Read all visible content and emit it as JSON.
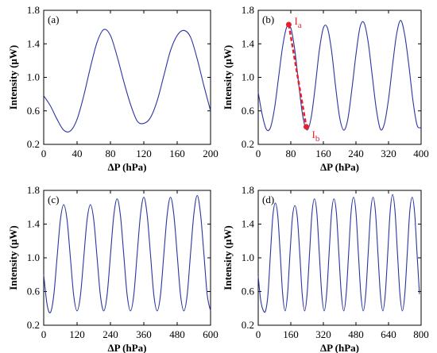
{
  "chart_data": [
    {
      "type": "line",
      "label": "(a)",
      "xlabel": "ΔP (hPa)",
      "ylabel": "Intensity (μW)",
      "xlim": [
        0,
        200
      ],
      "ylim": [
        0.2,
        1.8
      ],
      "xticks": [
        0,
        40,
        80,
        120,
        160,
        200
      ],
      "yticks": [
        0.2,
        0.6,
        {
          "value": 1,
          "label": "1.0"
        },
        1.4,
        1.8
      ],
      "x": [
        0,
        8,
        16,
        24,
        32,
        40,
        48,
        56,
        64,
        72,
        80,
        88,
        96,
        104,
        112,
        120,
        128,
        136,
        144,
        152,
        160,
        168,
        176,
        184,
        192,
        200
      ],
      "color": "#2b35a0",
      "values": [
        0.78,
        0.66,
        0.5,
        0.37,
        0.36,
        0.5,
        0.78,
        1.12,
        1.42,
        1.57,
        1.5,
        1.25,
        0.95,
        0.68,
        0.48,
        0.45,
        0.52,
        0.72,
        1.02,
        1.32,
        1.5,
        1.56,
        1.48,
        1.22,
        0.9,
        0.6
      ]
    },
    {
      "type": "line",
      "label": "(b)",
      "xlabel": "ΔP (hPa)",
      "ylabel": "Intensity (μW)",
      "xlim": [
        0,
        400
      ],
      "ylim": [
        0.2,
        1.8
      ],
      "xticks": [
        0,
        80,
        160,
        240,
        320,
        400
      ],
      "yticks": [
        0.2,
        0.6,
        {
          "value": 1,
          "label": "1.0"
        },
        1.4,
        1.8
      ],
      "x": [
        0,
        10,
        20,
        30,
        40,
        50,
        60,
        70,
        80,
        90,
        100,
        110,
        120,
        130,
        140,
        150,
        160,
        170,
        180,
        190,
        200,
        210,
        220,
        230,
        240,
        250,
        260,
        270,
        280,
        290,
        300,
        310,
        320,
        330,
        340,
        350,
        360,
        370,
        380,
        390,
        400
      ],
      "color": "#2b35a0",
      "values": [
        0.82,
        0.55,
        0.38,
        0.4,
        0.63,
        1.0,
        1.37,
        1.6,
        1.59,
        1.32,
        0.89,
        0.52,
        0.37,
        0.52,
        0.89,
        1.32,
        1.59,
        1.59,
        1.32,
        0.89,
        0.52,
        0.37,
        0.5,
        0.86,
        1.27,
        1.6,
        1.65,
        1.42,
        1.02,
        0.62,
        0.38,
        0.45,
        0.74,
        1.15,
        1.52,
        1.68,
        1.5,
        1.14,
        0.72,
        0.43,
        0.4
      ],
      "annotation_color": "#e8202a",
      "annotations": [
        {
          "x": 75,
          "y": 1.63,
          "label": "I",
          "sub": "a"
        },
        {
          "x": 118,
          "y": 0.41,
          "label": "I",
          "sub": "b"
        }
      ]
    },
    {
      "type": "line",
      "label": "(c)",
      "xlabel": "ΔP (hPa)",
      "ylabel": "Intensity (μW)",
      "xlim": [
        0,
        600
      ],
      "ylim": [
        0.2,
        1.8
      ],
      "xticks": [
        0,
        120,
        240,
        360,
        480,
        600
      ],
      "yticks": [
        0.2,
        0.6,
        {
          "value": 1,
          "label": "1.0"
        },
        1.4,
        1.8
      ],
      "x": [
        0,
        12,
        24,
        36,
        48,
        60,
        72,
        84,
        96,
        108,
        120,
        132,
        144,
        156,
        168,
        180,
        192,
        204,
        216,
        228,
        240,
        252,
        264,
        276,
        288,
        300,
        312,
        324,
        336,
        348,
        360,
        372,
        384,
        396,
        408,
        420,
        432,
        444,
        456,
        468,
        480,
        492,
        504,
        516,
        528,
        540,
        552,
        564,
        576,
        588,
        600
      ],
      "color": "#2b35a0",
      "values": [
        0.8,
        0.45,
        0.35,
        0.55,
        1.0,
        1.45,
        1.63,
        1.45,
        1.0,
        0.55,
        0.37,
        0.55,
        1.0,
        1.45,
        1.63,
        1.45,
        1.0,
        0.55,
        0.37,
        0.56,
        1.03,
        1.5,
        1.7,
        1.5,
        1.03,
        0.56,
        0.37,
        0.56,
        1.04,
        1.51,
        1.72,
        1.51,
        1.04,
        0.56,
        0.37,
        0.56,
        1.04,
        1.51,
        1.72,
        1.51,
        1.04,
        0.56,
        0.37,
        0.56,
        1.05,
        1.52,
        1.74,
        1.52,
        1.05,
        0.56,
        0.37
      ]
    },
    {
      "type": "line",
      "label": "(d)",
      "xlabel": "ΔP (hPa)",
      "ylabel": "Intensity (μW)",
      "xlim": [
        0,
        800
      ],
      "ylim": [
        0.2,
        1.8
      ],
      "xticks": [
        0,
        160,
        320,
        480,
        640,
        800
      ],
      "yticks": [
        0.2,
        0.6,
        {
          "value": 1,
          "label": "1.0"
        },
        1.4,
        1.8
      ],
      "x": [
        0,
        12,
        24,
        36,
        48,
        60,
        72,
        84,
        96,
        108,
        120,
        132,
        144,
        156,
        168,
        180,
        192,
        204,
        216,
        228,
        240,
        252,
        264,
        276,
        288,
        300,
        312,
        324,
        336,
        348,
        360,
        372,
        384,
        396,
        408,
        420,
        432,
        444,
        456,
        468,
        480,
        492,
        504,
        516,
        528,
        540,
        552,
        564,
        576,
        588,
        600,
        612,
        624,
        636,
        648,
        660,
        672,
        684,
        696,
        708,
        720,
        732,
        744,
        756,
        768,
        780,
        792
      ],
      "color": "#2b35a0",
      "values": [
        0.78,
        0.5,
        0.38,
        0.37,
        0.57,
        1.05,
        1.5,
        1.65,
        1.5,
        1.05,
        0.57,
        0.37,
        0.57,
        1.05,
        1.48,
        1.62,
        1.48,
        1.05,
        0.57,
        0.37,
        0.57,
        1.05,
        1.53,
        1.7,
        1.53,
        1.05,
        0.57,
        0.37,
        0.57,
        1.05,
        1.53,
        1.7,
        1.53,
        1.05,
        0.57,
        0.37,
        0.57,
        1.05,
        1.54,
        1.72,
        1.54,
        1.05,
        0.57,
        0.37,
        0.57,
        1.05,
        1.54,
        1.72,
        1.54,
        1.05,
        0.57,
        0.37,
        0.57,
        1.05,
        1.55,
        1.75,
        1.55,
        1.05,
        0.57,
        0.37,
        0.57,
        1.05,
        1.54,
        1.72,
        1.54,
        1.05,
        0.57
      ]
    }
  ]
}
